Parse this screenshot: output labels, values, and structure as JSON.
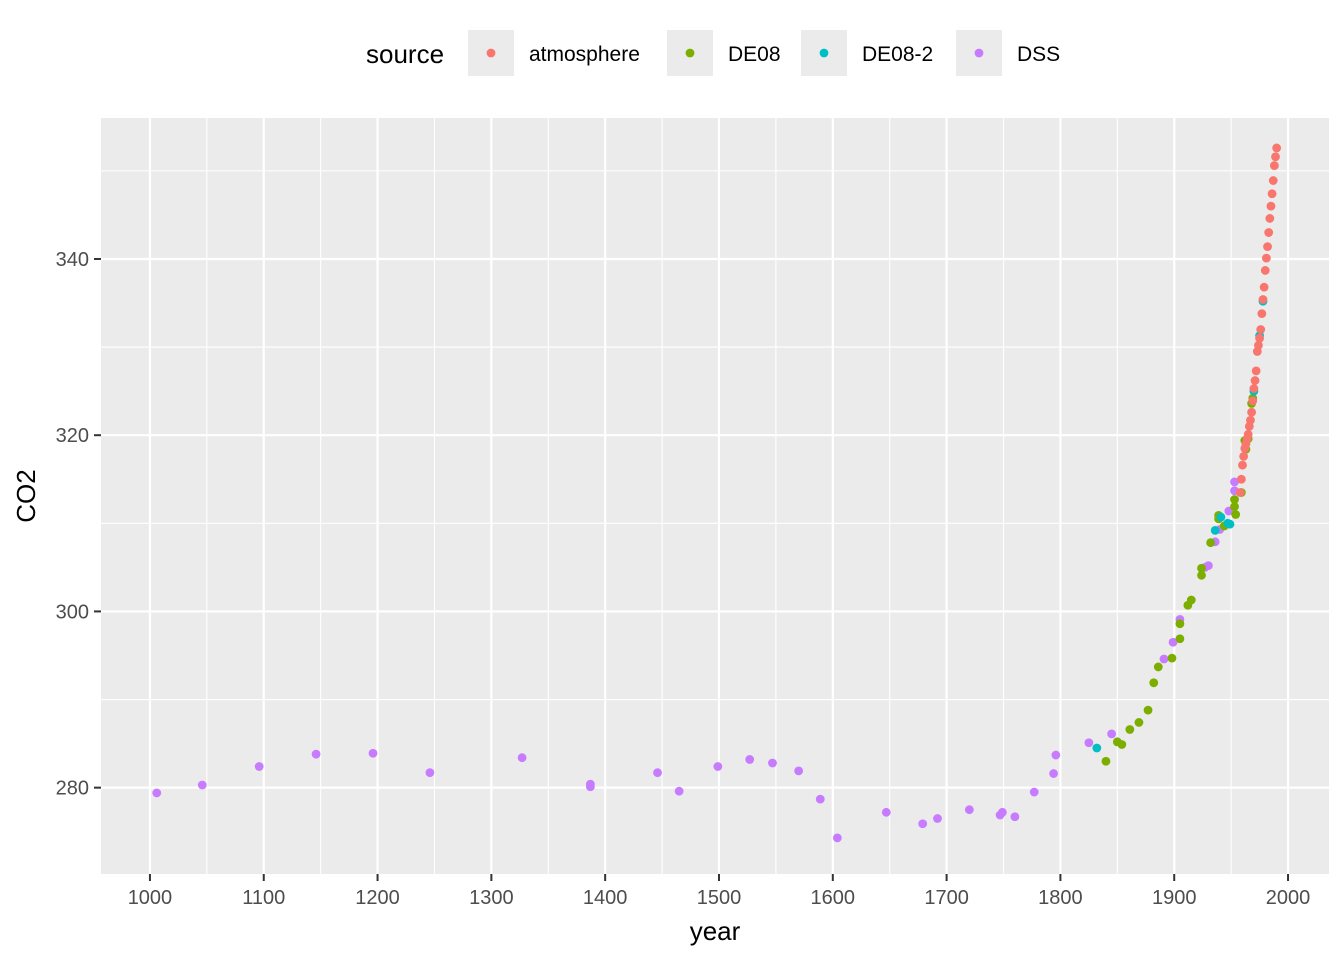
{
  "chart_data": {
    "type": "scatter",
    "xlabel": "year",
    "ylabel": "CO2",
    "xlim": [
      957,
      2036
    ],
    "ylim": [
      270.2,
      356.0
    ],
    "x_ticks": [
      1000,
      1100,
      1200,
      1300,
      1400,
      1500,
      1600,
      1700,
      1800,
      1900,
      2000
    ],
    "y_ticks": [
      280,
      300,
      320,
      340
    ],
    "grid": true,
    "legend": {
      "title": "source",
      "position": "top",
      "entries": [
        {
          "name": "atmosphere",
          "color": "#F8766D"
        },
        {
          "name": "DE08",
          "color": "#7CAE00"
        },
        {
          "name": "DE08-2",
          "color": "#00BFC4"
        },
        {
          "name": "DSS",
          "color": "#C77CFF"
        }
      ]
    },
    "series": [
      {
        "name": "DSS",
        "color": "#C77CFF",
        "points": [
          [
            1006,
            279.4
          ],
          [
            1046,
            280.3
          ],
          [
            1096,
            282.4
          ],
          [
            1146,
            283.8
          ],
          [
            1196,
            283.9
          ],
          [
            1246,
            281.7
          ],
          [
            1327,
            283.4
          ],
          [
            1387,
            280.4
          ],
          [
            1387,
            280.1
          ],
          [
            1446,
            281.7
          ],
          [
            1465,
            279.6
          ],
          [
            1499,
            282.4
          ],
          [
            1527,
            283.2
          ],
          [
            1547,
            282.8
          ],
          [
            1570,
            281.9
          ],
          [
            1589,
            278.7
          ],
          [
            1604,
            274.3
          ],
          [
            1647,
            277.2
          ],
          [
            1679,
            275.9
          ],
          [
            1692,
            276.5
          ],
          [
            1720,
            277.5
          ],
          [
            1747,
            276.9
          ],
          [
            1749,
            277.2
          ],
          [
            1760,
            276.7
          ],
          [
            1777,
            279.5
          ],
          [
            1794,
            281.6
          ],
          [
            1796,
            283.7
          ],
          [
            1825,
            285.1
          ],
          [
            1845,
            286.1
          ],
          [
            1891,
            294.6
          ],
          [
            1899,
            296.5
          ],
          [
            1905,
            299.1
          ],
          [
            1927,
            305.0
          ],
          [
            1930,
            305.2
          ],
          [
            1936,
            307.9
          ],
          [
            1940,
            309.3
          ],
          [
            1948,
            311.4
          ],
          [
            1953,
            313.7
          ],
          [
            1953,
            314.7
          ]
        ]
      },
      {
        "name": "DE08",
        "color": "#7CAE00",
        "points": [
          [
            1840,
            283.0
          ],
          [
            1850,
            285.2
          ],
          [
            1854,
            284.9
          ],
          [
            1861,
            286.6
          ],
          [
            1869,
            287.4
          ],
          [
            1877,
            288.8
          ],
          [
            1882,
            291.9
          ],
          [
            1886,
            293.7
          ],
          [
            1898,
            294.7
          ],
          [
            1905,
            296.9
          ],
          [
            1905,
            298.6
          ],
          [
            1912,
            300.7
          ],
          [
            1915,
            301.3
          ],
          [
            1924,
            304.1
          ],
          [
            1924,
            304.9
          ],
          [
            1932,
            307.8
          ],
          [
            1939,
            310.9
          ],
          [
            1939,
            310.5
          ],
          [
            1944,
            309.7
          ],
          [
            1953,
            312.7
          ],
          [
            1953,
            311.9
          ],
          [
            1954,
            311.0
          ],
          [
            1959,
            313.5
          ],
          [
            1962,
            319.4
          ],
          [
            1963,
            318.4
          ],
          [
            1965,
            319.6
          ],
          [
            1968,
            323.6
          ],
          [
            1969,
            324.2
          ]
        ]
      },
      {
        "name": "DE08-2",
        "color": "#00BFC4",
        "points": [
          [
            1832,
            284.5
          ],
          [
            1936,
            309.2
          ],
          [
            1941,
            310.7
          ],
          [
            1947,
            310.0
          ],
          [
            1949,
            309.9
          ],
          [
            1970,
            325.0
          ],
          [
            1975,
            331.3
          ],
          [
            1978,
            335.2
          ]
        ]
      },
      {
        "name": "atmosphere",
        "color": "#F8766D",
        "points": [
          [
            1958,
            313.5
          ],
          [
            1959,
            315.0
          ],
          [
            1960,
            316.6
          ],
          [
            1961,
            317.6
          ],
          [
            1962,
            318.5
          ],
          [
            1963,
            319.0
          ],
          [
            1964,
            319.6
          ],
          [
            1965,
            320.1
          ],
          [
            1966,
            321.0
          ],
          [
            1967,
            321.7
          ],
          [
            1968,
            322.6
          ],
          [
            1969,
            323.9
          ],
          [
            1970,
            325.3
          ],
          [
            1971,
            326.2
          ],
          [
            1972,
            327.3
          ],
          [
            1973,
            329.5
          ],
          [
            1974,
            330.2
          ],
          [
            1975,
            331.0
          ],
          [
            1976,
            332.0
          ],
          [
            1977,
            333.8
          ],
          [
            1978,
            335.4
          ],
          [
            1979,
            336.8
          ],
          [
            1980,
            338.7
          ],
          [
            1981,
            340.1
          ],
          [
            1982,
            341.4
          ],
          [
            1983,
            343.0
          ],
          [
            1984,
            344.6
          ],
          [
            1985,
            346.0
          ],
          [
            1986,
            347.4
          ],
          [
            1987,
            348.9
          ],
          [
            1988,
            350.6
          ],
          [
            1989,
            351.6
          ],
          [
            1990,
            352.6
          ]
        ]
      }
    ]
  }
}
